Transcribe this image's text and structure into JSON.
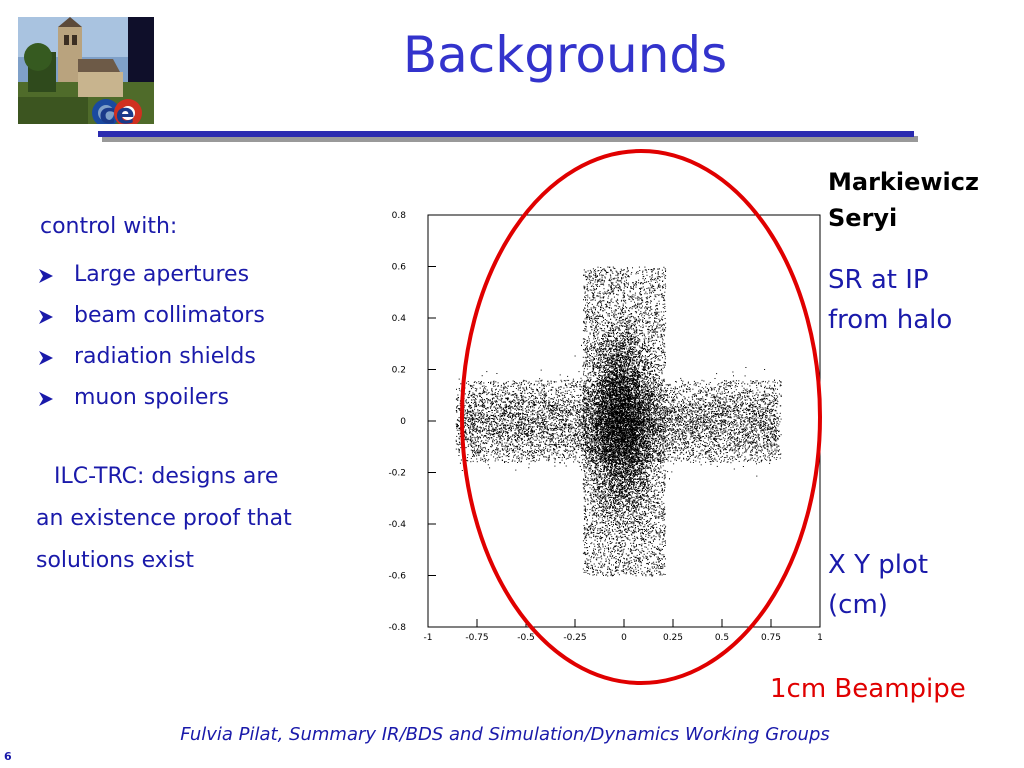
{
  "title": "Backgrounds",
  "logo": {
    "letters": "ce"
  },
  "left": {
    "intro": "control with:",
    "bullets": [
      "Large apertures",
      "beam collimators",
      "radiation shields",
      "muon spoilers"
    ],
    "trc_lines": [
      "ILC-TRC: designs are",
      "an existence proof that",
      "solutions exist"
    ]
  },
  "right": {
    "authors": [
      "Markiewicz",
      "Seryi"
    ],
    "sr_lines": [
      "SR at IP",
      "from halo"
    ],
    "xy_lines": [
      "X Y plot",
      "(cm)"
    ],
    "beampipe": "1cm Beampipe"
  },
  "plot": {
    "xlim": [
      -1,
      1
    ],
    "ylim": [
      -0.8,
      0.8
    ],
    "x_ticks": [
      "-1",
      "-0.75",
      "-0.5",
      "-0.25",
      "0",
      "0.25",
      "0.5",
      "0.75",
      "1"
    ],
    "y_ticks": [
      "0.8",
      "0.6",
      "0.4",
      "0.2",
      "0",
      "-0.2",
      "-0.4",
      "-0.6",
      "-0.8"
    ],
    "point_color": "#000000",
    "beampipe_color": "#e00000"
  },
  "footer": "Fulvia Pilat, Summary IR/BDS and Simulation/Dynamics Working Groups",
  "page_number": "6",
  "colors": {
    "text_blue": "#1a1aaa",
    "title_blue": "#3333cc",
    "red": "#e00000"
  }
}
